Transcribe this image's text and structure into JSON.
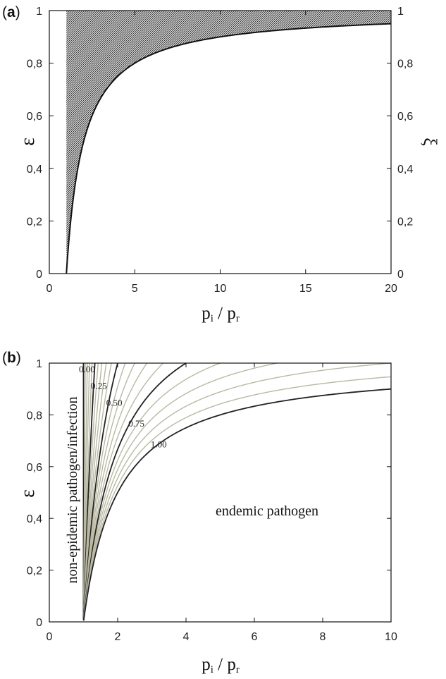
{
  "chart_data": [
    {
      "panel": "(a)",
      "panel_letter": "a",
      "type": "area",
      "ylabel": "ε",
      "y2label": "ξ",
      "xlabel": {
        "base": "p",
        "sub1": "i",
        "sep": " / ",
        "sub2": "r"
      },
      "xlim": [
        0,
        20
      ],
      "ylim": [
        0,
        1
      ],
      "x_ticks": [
        0,
        5,
        10,
        15,
        20
      ],
      "y_ticks": [
        0,
        0.2,
        0.4,
        0.6,
        0.8,
        1
      ],
      "y_tick_labels": [
        "0",
        "0,2",
        "0,4",
        "0,6",
        "0,8",
        "1"
      ],
      "y2_tick_labels": [
        "0",
        "0,2",
        "0,4",
        "0,6",
        "0,8",
        "1"
      ],
      "series": [
        {
          "relation": "ε = 1 − 1/(p_i/p_r)",
          "x": [
            1,
            1.1,
            1.25,
            1.5,
            2,
            2.5,
            3,
            4,
            5,
            6,
            8,
            10,
            12,
            15,
            20
          ],
          "y": [
            0,
            0.091,
            0.2,
            0.333,
            0.5,
            0.6,
            0.667,
            0.75,
            0.8,
            0.833,
            0.875,
            0.9,
            0.917,
            0.933,
            0.95
          ],
          "shaded_region": "above curve, x ≥ 1",
          "fill_color": "#555555"
        }
      ],
      "grid": false
    },
    {
      "panel": "(b)",
      "panel_letter": "b",
      "type": "line",
      "ylabel": "ε",
      "xlabel": {
        "base": "p",
        "sub1": "i",
        "sep": " / ",
        "sub2": "r"
      },
      "xlim": [
        0,
        10
      ],
      "ylim": [
        0,
        1
      ],
      "x_ticks": [
        0,
        2,
        4,
        6,
        8,
        10
      ],
      "y_ticks": [
        0,
        0.2,
        0.4,
        0.6,
        0.8,
        1
      ],
      "y_tick_labels": [
        "0",
        "0,2",
        "0,4",
        "0,6",
        "0,8",
        "1"
      ],
      "region_labels": [
        "non-epidemic pathogen/infection",
        "endemic pathogen"
      ],
      "contour_relation": "ε = (1 − 1/(p_i/p_r)) / ξ",
      "contour_levels": [
        0.05,
        0.1,
        0.15,
        0.2,
        0.25,
        0.3,
        0.35,
        0.4,
        0.45,
        0.5,
        0.55,
        0.6,
        0.65,
        0.7,
        0.75,
        0.8,
        0.85,
        0.9,
        0.95,
        1.0
      ],
      "labeled_contours": [
        {
          "level": 0.0,
          "label": "0.00"
        },
        {
          "level": 0.25,
          "label": "0.25"
        },
        {
          "level": 0.5,
          "label": "0.50"
        },
        {
          "level": 0.75,
          "label": "0.75"
        },
        {
          "level": 1.0,
          "label": "1.00"
        }
      ],
      "colors": {
        "major": "#222222",
        "minor": "#b9b9a3"
      },
      "grid": false
    }
  ]
}
